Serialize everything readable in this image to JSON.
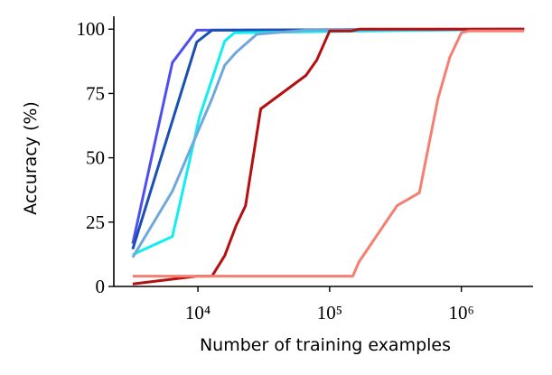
{
  "chart_data": {
    "type": "line",
    "xlabel": "Number of training examples",
    "ylabel": "Accuracy (%)",
    "xscale": "log",
    "xlim": [
      2300,
      3500000
    ],
    "ylim": [
      0,
      105
    ],
    "xticks": [
      {
        "value": 10000,
        "label": "10⁴"
      },
      {
        "value": 100000,
        "label": "10⁵"
      },
      {
        "value": 1000000,
        "label": "10⁶"
      }
    ],
    "yticks": [
      0,
      25,
      50,
      75,
      100
    ],
    "grid": false,
    "series": [
      {
        "color": "#4f4ff0",
        "x": [
          3200,
          6400,
          9800,
          3000000
        ],
        "values": [
          16.6,
          87,
          99.6,
          100
        ]
      },
      {
        "color": "#1a4fb4",
        "x": [
          3200,
          9800,
          12800,
          3000000
        ],
        "values": [
          14.5,
          95,
          99.6,
          100
        ]
      },
      {
        "color": "#10eef2",
        "x": [
          3200,
          6400,
          10300,
          16000,
          19000,
          3000000
        ],
        "values": [
          12.4,
          19.4,
          66,
          95.4,
          98.6,
          100
        ]
      },
      {
        "color": "#6fa8dc",
        "x": [
          3200,
          6400,
          12800,
          16000,
          19500,
          28000,
          66000,
          3000000
        ],
        "values": [
          11.3,
          37,
          73,
          86,
          91,
          98,
          99.6,
          100
        ]
      },
      {
        "color": "#b51010",
        "x": [
          3200,
          9800,
          12800,
          16000,
          19500,
          23000,
          30000,
          66000,
          80000,
          100000,
          146000,
          170000,
          3000000
        ],
        "values": [
          1,
          4,
          4,
          12,
          23.7,
          31.4,
          69,
          82,
          88,
          99.3,
          99.3,
          100,
          100
        ]
      },
      {
        "color": "#f47f72",
        "x": [
          3200,
          150000,
          167000,
          325000,
          480000,
          665000,
          816000,
          1000000,
          1150000,
          3000000
        ],
        "values": [
          4,
          4,
          9.5,
          31.4,
          36.4,
          73,
          89,
          98.6,
          99.3,
          99.3
        ]
      }
    ]
  }
}
